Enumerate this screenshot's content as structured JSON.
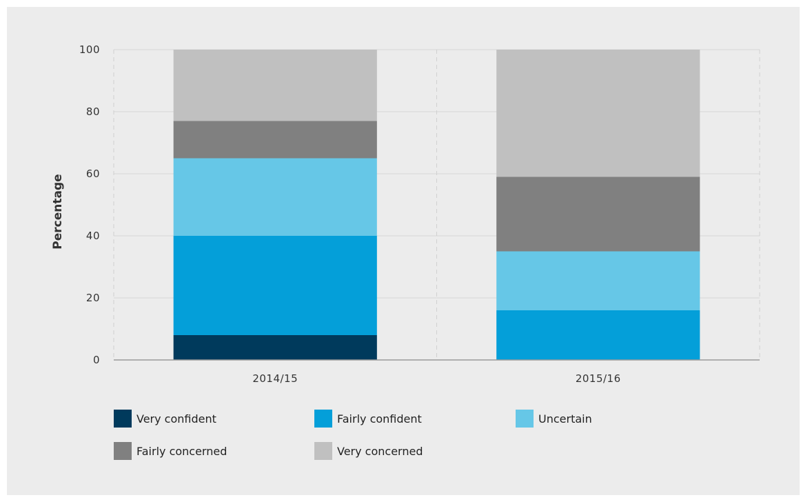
{
  "chart_data": {
    "type": "bar",
    "stacked": true,
    "categories": [
      "2014/15",
      "2015/16"
    ],
    "ylabel": "Percentage",
    "xlabel": "",
    "ylim": [
      0,
      100
    ],
    "yticks": [
      0,
      20,
      40,
      60,
      80,
      100
    ],
    "grid": true,
    "legend_position": "bottom",
    "series": [
      {
        "name": "Very confident",
        "color": "#003a5c",
        "values": [
          8,
          0
        ]
      },
      {
        "name": "Fairly confident",
        "color": "#049fd9",
        "values": [
          32,
          16
        ]
      },
      {
        "name": "Uncertain",
        "color": "#66c7e7",
        "values": [
          25,
          19
        ]
      },
      {
        "name": "Fairly concerned",
        "color": "#808080",
        "values": [
          12,
          24
        ]
      },
      {
        "name": "Very concerned",
        "color": "#c0c0c0",
        "values": [
          23,
          41
        ]
      }
    ]
  }
}
